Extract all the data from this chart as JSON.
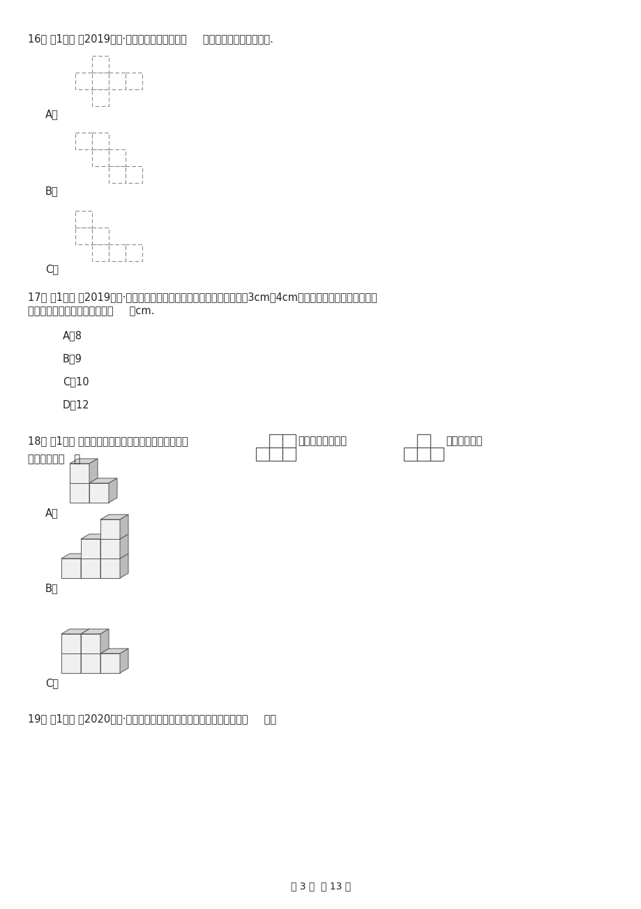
{
  "bg_color": "#ffffff",
  "page_width": 9.2,
  "page_height": 13.02,
  "q16": "16． （1分） （2019五下·单县期末）下面图形（     ）沿虚线不能折成正方体.",
  "q17_1": "17． （1分） （2019五下·长寿期末）一个三角形，其中两条边长分别为3cm和4cm，第三条边的长度是个奇数，",
  "q17_2": "那么这个三角形的周长最短是（     ）cm.",
  "q17_A": "A．8",
  "q17_B": "B．9",
  "q17_C": "C．10",
  "q17_D": "D．12",
  "q18_pre": "18． （1分） 小明摆了一个立体图形，从上面看到的是",
  "q18_mid": "，从正面看到的是",
  "q18_post": "，小明摆成的",
  "q18_line2": "立体图形是（   ）",
  "q18_A": "A．",
  "q18_B": "B．",
  "q18_C": "C．",
  "q19": "19． （1分） （2020五上·镇原期末）下图中的三个图形的面积相比，（     ）。",
  "footer": "第 3 页  共 13 页"
}
